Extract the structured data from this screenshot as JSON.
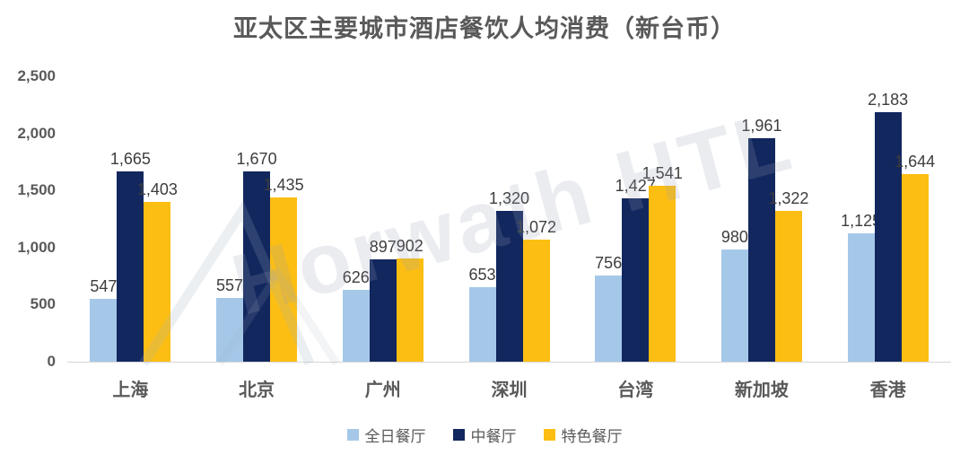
{
  "title": "亚太区主要城市酒店餐饮人均消费（新台币）",
  "watermark": {
    "text": "Horwath HTL"
  },
  "colors": {
    "title_text": "#595959",
    "axis_text": "#595959",
    "value_label_text": "#3D3D3D",
    "axis_line": "#D6D6D6",
    "series_all_day": "#A5C8E9",
    "series_chinese": "#12275E",
    "series_specialty": "#FDBE13"
  },
  "chart_data": {
    "type": "bar",
    "title": "亚太区主要城市酒店餐饮人均消费（新台币）",
    "categories": [
      "上海",
      "北京",
      "广州",
      "深圳",
      "台湾",
      "新加坡",
      "香港"
    ],
    "series": [
      {
        "name": "全日餐厅",
        "color": "#A5C8E9",
        "values": [
          547,
          557,
          626,
          653,
          756,
          980,
          1125
        ],
        "labels": [
          "547",
          "557",
          "626",
          "653",
          "756",
          "980",
          "1,125"
        ]
      },
      {
        "name": "中餐厅",
        "color": "#12275E",
        "values": [
          1665,
          1670,
          897,
          1320,
          1427,
          1961,
          2183
        ],
        "labels": [
          "1,665",
          "1,670",
          "897",
          "1,320",
          "1,427",
          "1,961",
          "2,183"
        ]
      },
      {
        "name": "特色餐厅",
        "color": "#FDBE13",
        "values": [
          1403,
          1435,
          902,
          1072,
          1541,
          1322,
          1644
        ],
        "labels": [
          "1,403",
          "1,435",
          "902",
          "1,072",
          "1,541",
          "1,322",
          "1,644"
        ]
      }
    ],
    "xlabel": "",
    "ylabel": "",
    "ylim": [
      0,
      2500
    ],
    "ytick_values": [
      0,
      500,
      1000,
      1500,
      2000,
      2500
    ],
    "ytick_labels": [
      "0",
      "500",
      "1,000",
      "1,500",
      "2,000",
      "2,500"
    ],
    "grid": false,
    "legend_position": "bottom"
  }
}
